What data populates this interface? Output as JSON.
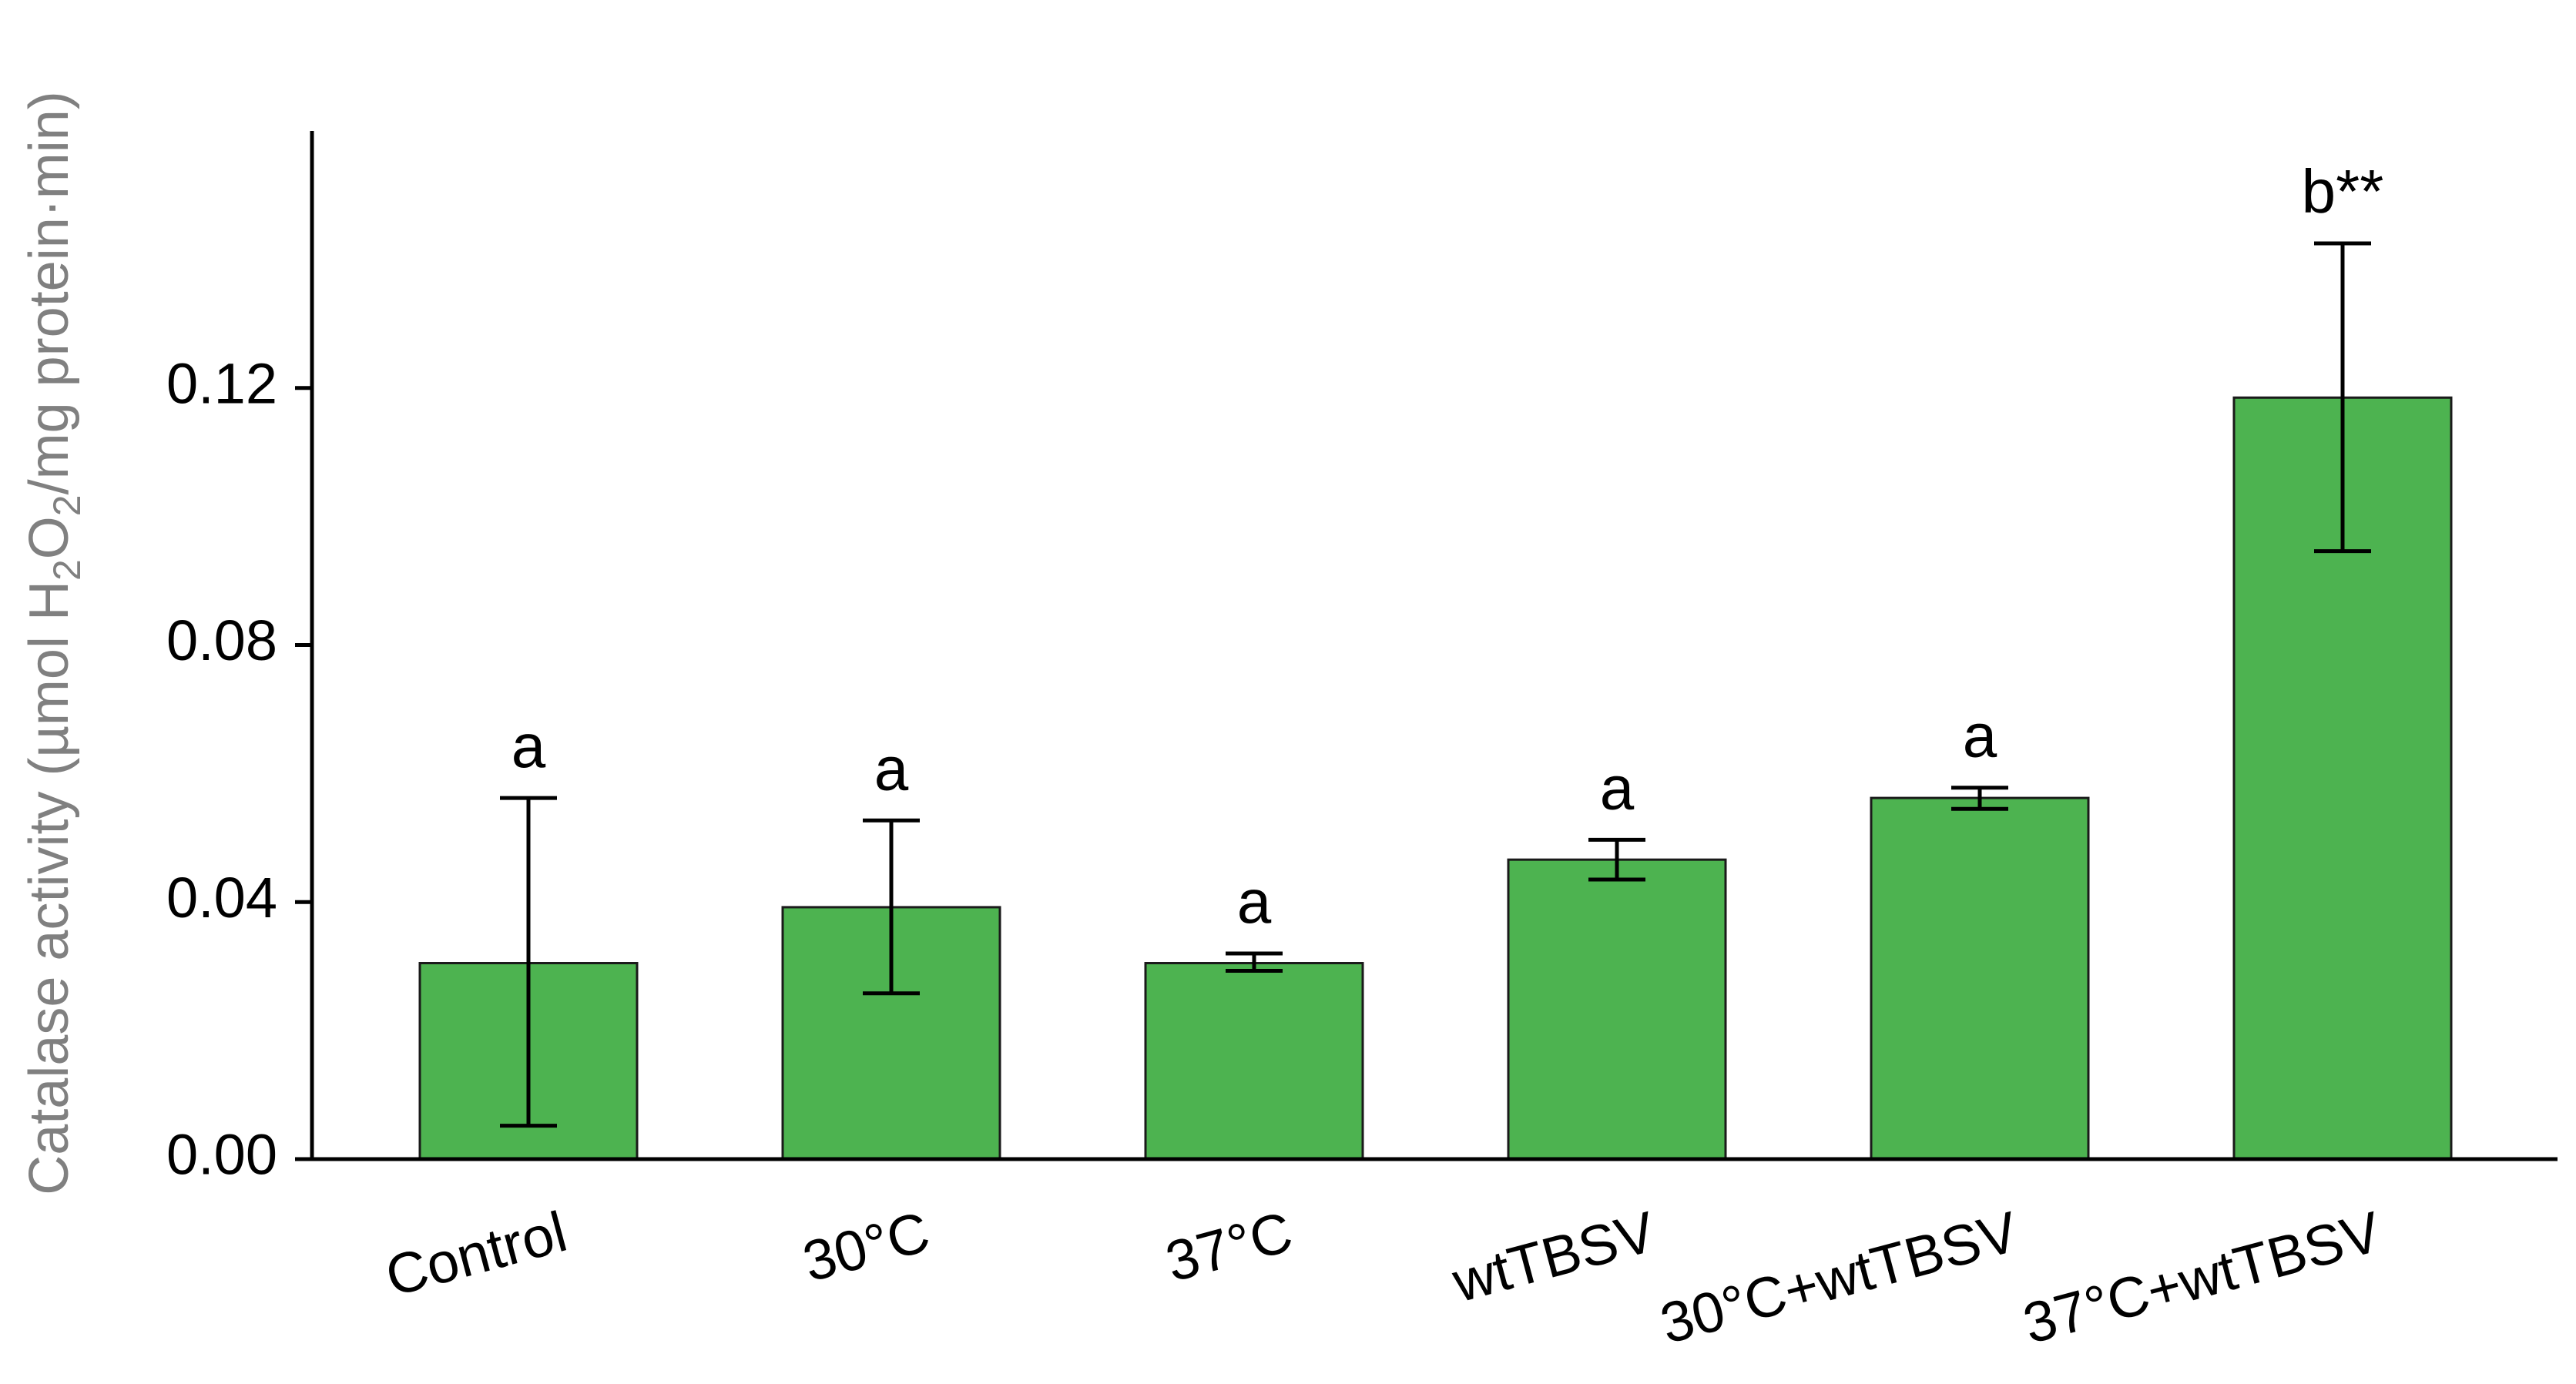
{
  "chart_data": {
    "type": "bar",
    "title": "",
    "xlabel": "",
    "ylabel": {
      "parts": [
        {
          "text": "Catalase activity (µmol H",
          "sub": false
        },
        {
          "text": "2",
          "sub": true
        },
        {
          "text": "O",
          "sub": false
        },
        {
          "text": "2",
          "sub": true
        },
        {
          "text": "/mg protein·min)",
          "sub": false
        }
      ]
    },
    "ylim": [
      0,
      0.16
    ],
    "yticks": [
      0.0,
      0.04,
      0.08,
      0.12
    ],
    "ytick_labels": [
      "0.00",
      "0.04",
      "0.08",
      "0.12"
    ],
    "categories": [
      "Control",
      "30°C",
      "37°C",
      "wtTBSV",
      "30°C+wtTBSV",
      "37°C+wtTBSV"
    ],
    "values": [
      0.0305,
      0.0392,
      0.0305,
      0.0466,
      0.0562,
      0.1185
    ],
    "error_low": [
      0.0052,
      0.0258,
      0.0293,
      0.0435,
      0.0545,
      0.0946
    ],
    "error_high": [
      0.0562,
      0.0527,
      0.032,
      0.0497,
      0.0578,
      0.1425
    ],
    "significance_labels": [
      "a",
      "a",
      "a",
      "a",
      "a",
      "b**"
    ],
    "bar_color": "#4db350",
    "bar_edge_color": "#1a1a1a",
    "grid": false,
    "legend": "none"
  }
}
